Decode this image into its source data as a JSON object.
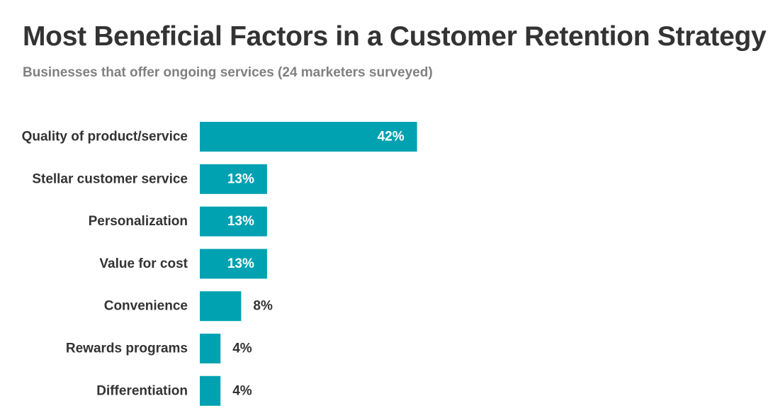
{
  "header": {
    "title": "Most Beneficial Factors in a Customer Retention Strategy",
    "subtitle": "Businesses that offer ongoing services (24 marketers surveyed)"
  },
  "colors": {
    "bar": "#00a2b1",
    "label_inside": "#ffffff",
    "label_outside": "#333333",
    "category_text": "#333333"
  },
  "chart_data": {
    "type": "bar",
    "orientation": "horizontal",
    "title": "Most Beneficial Factors in a Customer Retention Strategy",
    "subtitle": "Businesses that offer ongoing services (24 marketers surveyed)",
    "categories": [
      "Quality of product/service",
      "Stellar customer service",
      "Personalization",
      "Value for cost",
      "Convenience",
      "Rewards programs",
      "Differentiation"
    ],
    "values": [
      42,
      13,
      13,
      13,
      8,
      4,
      4
    ],
    "value_labels": [
      "42%",
      "13%",
      "13%",
      "13%",
      "8%",
      "4%",
      "4%"
    ],
    "unit": "%",
    "grid": false,
    "legend": "none"
  }
}
